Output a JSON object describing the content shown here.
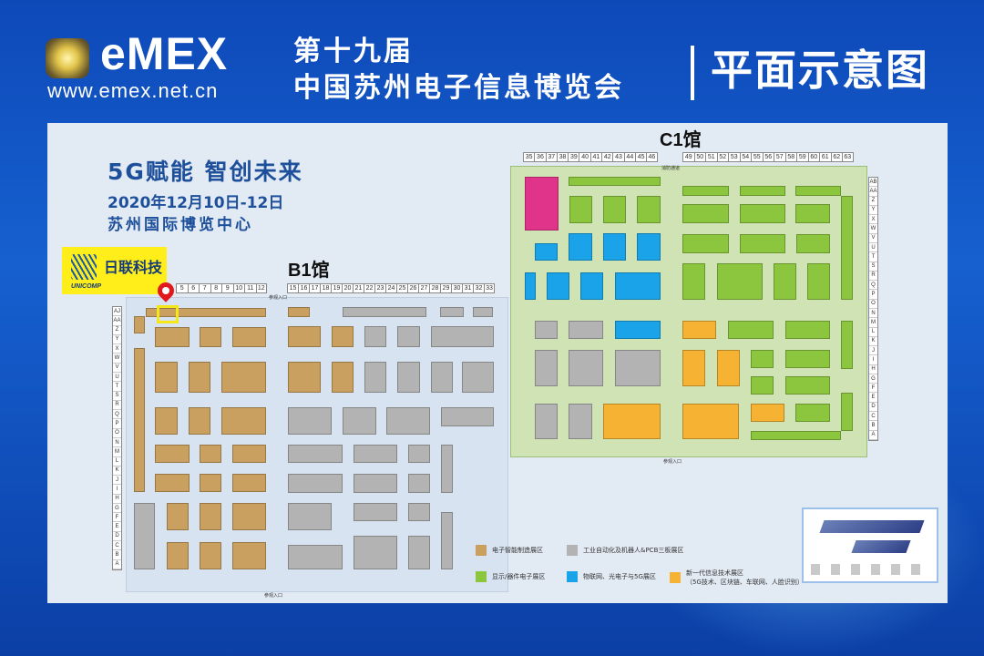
{
  "header": {
    "brand": "eMEX",
    "url": "www.emex.net.cn",
    "edition": "第十九届",
    "event_name": "中国苏州电子信息博览会",
    "page_title": "平面示意图"
  },
  "info": {
    "slogan": "5G赋能  智创未来",
    "date": "2020年12月10日-12日",
    "venue": "苏州国际博览中心"
  },
  "exhibitor": {
    "name": "日联科技",
    "sub": "UNICOMP"
  },
  "halls": {
    "b1": {
      "title": "B1馆",
      "columns_a": [
        "5",
        "6",
        "7",
        "8",
        "9",
        "10",
        "11",
        "12"
      ],
      "columns_b": [
        "15",
        "16",
        "17",
        "18",
        "19",
        "20",
        "21",
        "22",
        "23",
        "24",
        "25",
        "26",
        "27",
        "28",
        "29",
        "30",
        "31",
        "32",
        "33"
      ],
      "rows": [
        "AJ",
        "AA",
        "Z",
        "Y",
        "X",
        "W",
        "V",
        "U",
        "T",
        "S",
        "R",
        "Q",
        "P",
        "O",
        "N",
        "M",
        "L",
        "K",
        "J",
        "I",
        "H",
        "G",
        "F",
        "E",
        "D",
        "C",
        "B",
        "A"
      ],
      "entrance_top": "参观入口",
      "entrance_bottom": "参观入口"
    },
    "c1": {
      "title": "C1馆",
      "columns_a": [
        "35",
        "36",
        "37",
        "38",
        "39",
        "40",
        "41",
        "42",
        "43",
        "44",
        "45",
        "46"
      ],
      "columns_b": [
        "49",
        "50",
        "51",
        "52",
        "53",
        "54",
        "55",
        "56",
        "57",
        "58",
        "59",
        "60",
        "61",
        "62",
        "63"
      ],
      "rows": [
        "AB",
        "AA",
        "Z",
        "Y",
        "X",
        "W",
        "V",
        "U",
        "T",
        "S",
        "R",
        "Q",
        "P",
        "O",
        "N",
        "M",
        "L",
        "K",
        "J",
        "I",
        "H",
        "G",
        "F",
        "E",
        "D",
        "C",
        "B",
        "A"
      ],
      "entrance_top": "消防通道",
      "entrance_bottom": "参观入口"
    }
  },
  "legend": [
    {
      "label": "电子智能制造展区",
      "color": "#c9a060"
    },
    {
      "label": "工业自动化及机器人&PCB三板展区",
      "color": "#b3b3b3"
    },
    {
      "label": "显示/器件电子展区",
      "color": "#8cc63f"
    },
    {
      "label": "物联网、光电子与5G展区",
      "color": "#1aa3e8"
    },
    {
      "label": "新一代信息技术展区",
      "sub": "（5G技术、区块链、车联网、人脸识别）",
      "color": "#f6b232"
    }
  ],
  "colors": {
    "magenta": "#e0338a",
    "accent": "#1d4f9a"
  },
  "icons": {
    "location": "map-pin-icon"
  }
}
